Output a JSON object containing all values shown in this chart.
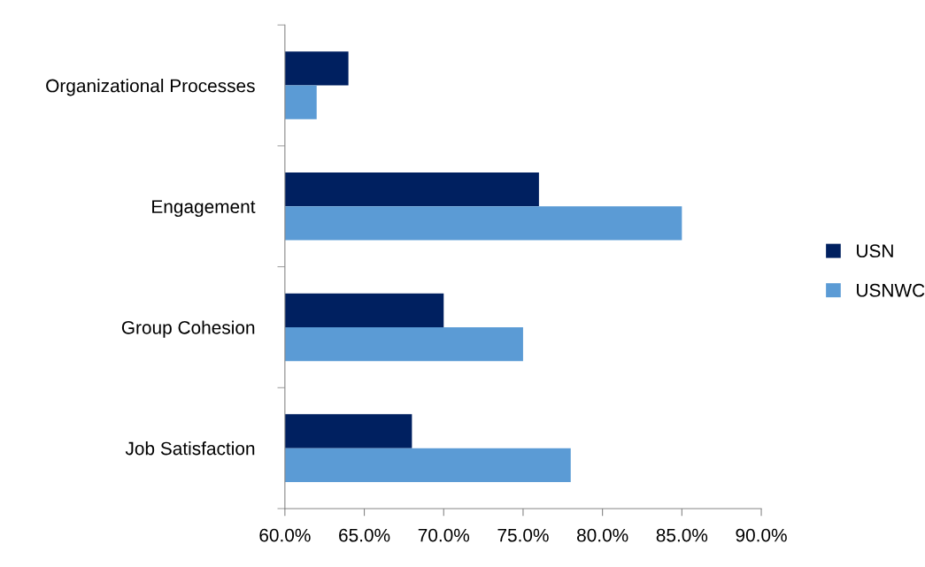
{
  "chart_data": {
    "type": "bar",
    "orientation": "horizontal",
    "categories": [
      "Organizational Processes",
      "Engagement",
      "Group Cohesion",
      "Job Satisfaction"
    ],
    "series": [
      {
        "name": "USN",
        "color": "#002060",
        "values": [
          64,
          76,
          70,
          68
        ]
      },
      {
        "name": "USNWC",
        "color": "#5b9bd5",
        "values": [
          62,
          85,
          75,
          78
        ]
      }
    ],
    "xlim": [
      60,
      90
    ],
    "xticks": [
      {
        "value": 60,
        "label": "60.0%"
      },
      {
        "value": 65,
        "label": "65.0%"
      },
      {
        "value": 70,
        "label": "70.0%"
      },
      {
        "value": 75,
        "label": "75.0%"
      },
      {
        "value": 80,
        "label": "80.0%"
      },
      {
        "value": 85,
        "label": "85.0%"
      },
      {
        "value": 90,
        "label": "90.0%"
      }
    ],
    "grid": false,
    "legend": "right"
  }
}
